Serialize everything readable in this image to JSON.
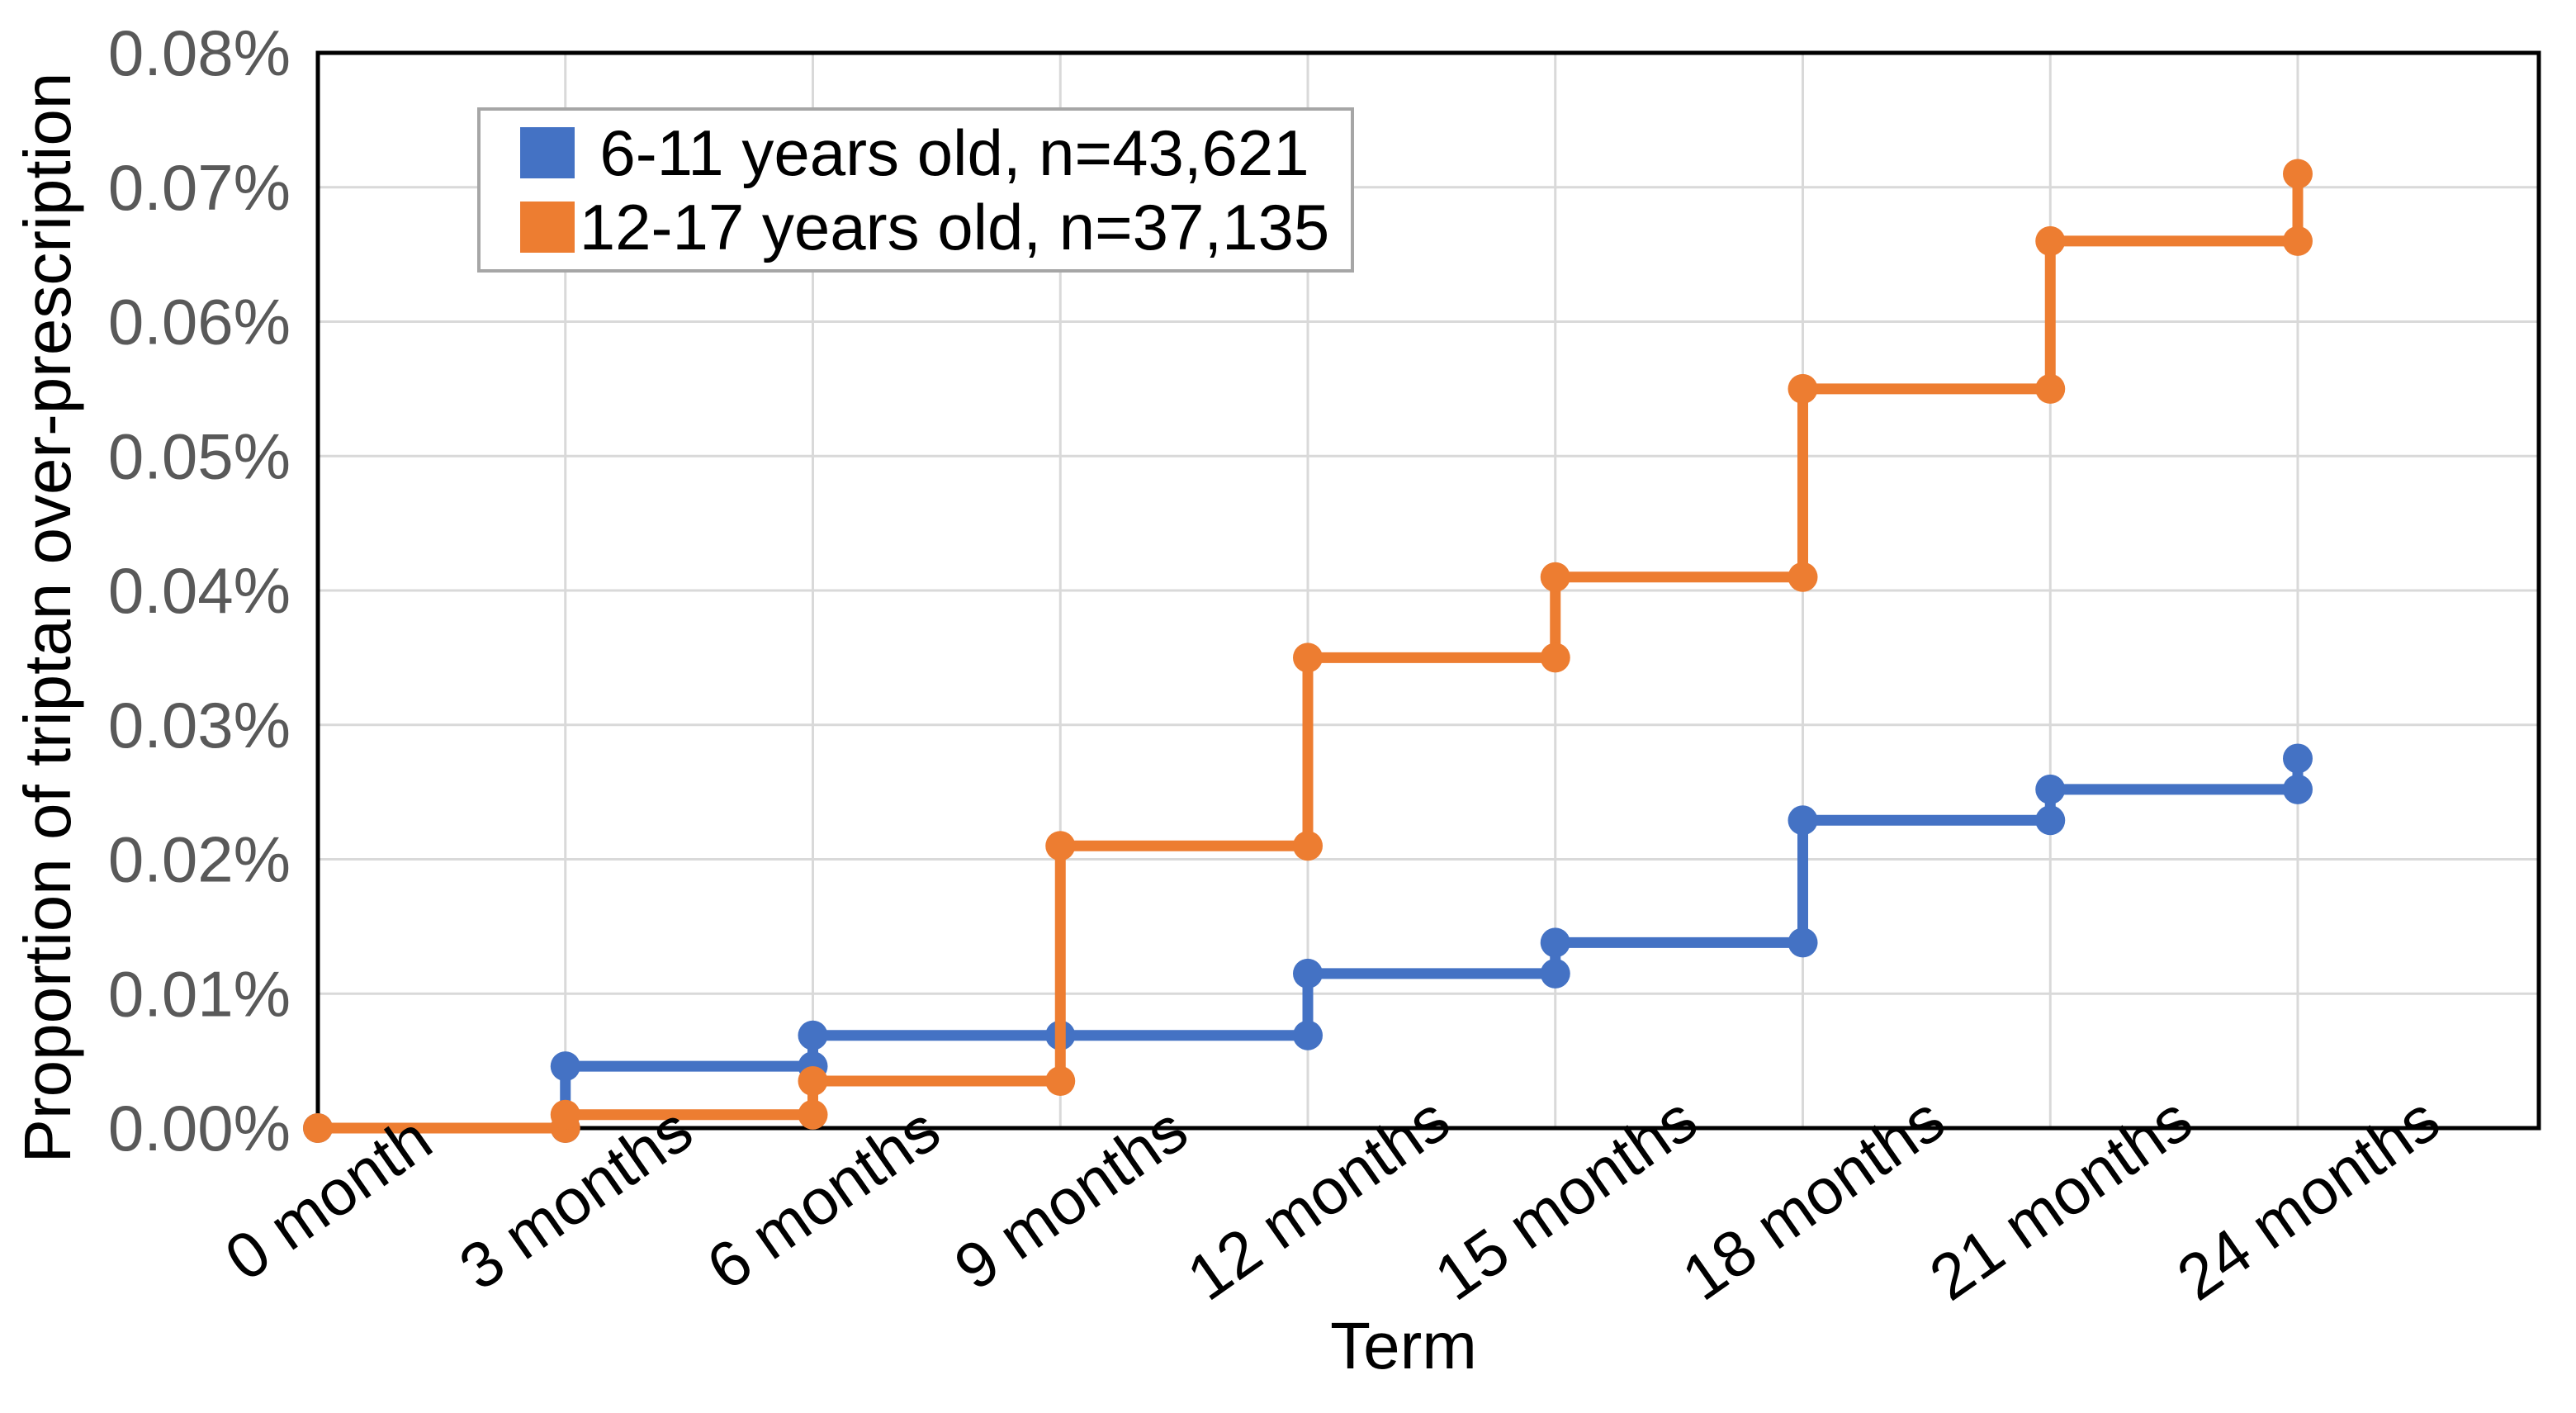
{
  "axes": {
    "x_title": "Term",
    "y_title": "Proportion of triptan over-prescription"
  },
  "legend": {
    "items": [
      {
        "label": "6-11 years old, n=43,621",
        "color": "#4472C4"
      },
      {
        "label": "12-17 years old, n=37,135",
        "color": "#ED7D31"
      }
    ]
  },
  "chart_data": {
    "type": "line",
    "subtype": "step-post-with-markers",
    "title": "",
    "xlabel": "Term",
    "ylabel": "Proportion of triptan over-prescription",
    "x_categories": [
      "0 month",
      "3 months",
      "6 months",
      "9 months",
      "12 months",
      "15 months",
      "18 months",
      "21 months",
      "24 months"
    ],
    "x_months": [
      0,
      3,
      6,
      9,
      12,
      15,
      18,
      21,
      24
    ],
    "y_tick_labels": [
      "0.00%",
      "0.01%",
      "0.02%",
      "0.03%",
      "0.04%",
      "0.05%",
      "0.06%",
      "0.07%",
      "0.08%"
    ],
    "ylim_percent": [
      0,
      0.08
    ],
    "y_tick_step_percent": 0.01,
    "grid": true,
    "legend_position": "inside-top-left",
    "series": [
      {
        "name": "6-11 years old, n=43,621",
        "color": "#4472C4",
        "values_percent": [
          0.0,
          0.0046,
          0.0069,
          0.0069,
          0.0115,
          0.0138,
          0.0229,
          0.0252,
          0.0275
        ]
      },
      {
        "name": "12-17 years old, n=37,135",
        "color": "#ED7D31",
        "values_percent": [
          0.0,
          0.001,
          0.0035,
          0.021,
          0.035,
          0.041,
          0.055,
          0.066,
          0.071
        ]
      }
    ]
  },
  "style": {
    "background": "#ffffff",
    "plot_border_color": "#000000",
    "gridline_color": "#d9d9d9",
    "y_tick_label_color": "#595959",
    "x_tick_label_color": "#000000",
    "axis_title_color": "#000000",
    "legend_border_color": "#a6a6a6"
  }
}
